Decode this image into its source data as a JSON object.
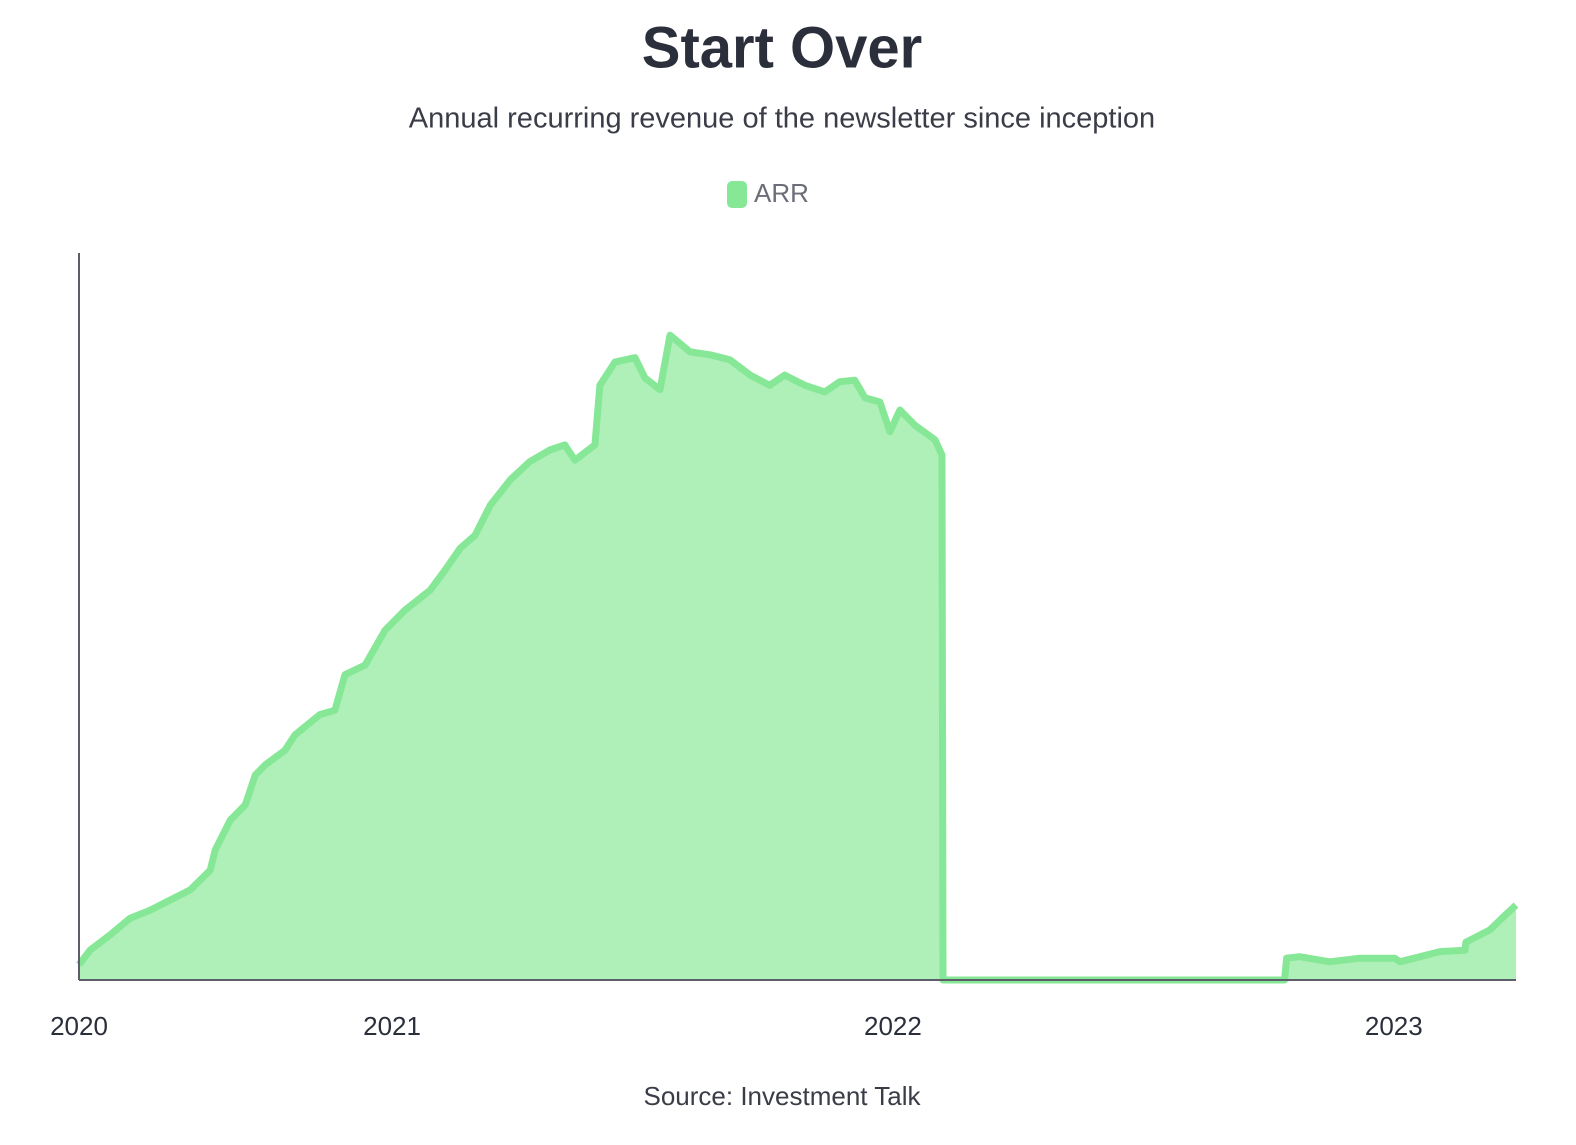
{
  "chart_data": {
    "type": "area",
    "title": "Start Over",
    "subtitle": "Annual recurring revenue of the newsletter since inception",
    "source": "Source: Investment Talk",
    "legend": "top",
    "grid": false,
    "xlim": [
      2020.375,
      2023.244
    ],
    "xticks": [
      {
        "value": 2020.375,
        "label": "2020"
      },
      2021,
      2022,
      2023
    ],
    "ylim": [
      0,
      100
    ],
    "x": [
      2020.375,
      2020.397,
      2020.437,
      2020.477,
      2020.517,
      2020.557,
      2020.597,
      2020.637,
      2020.647,
      2020.677,
      2020.707,
      2020.727,
      2020.747,
      2020.786,
      2020.806,
      2020.856,
      2020.886,
      2020.906,
      2020.946,
      2020.986,
      2021.026,
      2021.076,
      2021.106,
      2021.136,
      2021.166,
      2021.196,
      2021.236,
      2021.275,
      2021.315,
      2021.345,
      2021.365,
      2021.405,
      2021.415,
      2021.445,
      2021.485,
      2021.505,
      2021.535,
      2021.555,
      2021.595,
      2021.635,
      2021.675,
      2021.715,
      2021.754,
      2021.784,
      2021.824,
      2021.864,
      2021.894,
      2021.924,
      2021.944,
      2021.974,
      2021.994,
      2022.014,
      2022.044,
      2022.084,
      2022.098,
      2022.1,
      2022.782,
      2022.786,
      2022.812,
      2022.872,
      2022.932,
      2023.002,
      2023.012,
      2023.092,
      2023.142,
      2023.144,
      2023.192,
      2023.222,
      2023.244
    ],
    "series": [
      {
        "name": "ARR",
        "color": "#86e896",
        "fill": "#aef0b8",
        "values": [
          2.1,
          4.1,
          6.2,
          8.5,
          9.6,
          11.0,
          12.4,
          15.1,
          17.9,
          22.0,
          24.1,
          28.2,
          29.6,
          31.6,
          33.7,
          36.5,
          37.1,
          42.0,
          43.3,
          48.1,
          50.9,
          53.6,
          56.4,
          59.4,
          61.2,
          65.3,
          68.8,
          71.3,
          72.9,
          73.6,
          71.5,
          73.6,
          81.8,
          85.0,
          85.6,
          82.8,
          81.2,
          88.7,
          86.4,
          86.0,
          85.3,
          83.2,
          81.8,
          83.2,
          81.8,
          80.9,
          82.3,
          82.5,
          80.1,
          79.5,
          75.4,
          78.4,
          76.3,
          74.3,
          72.2,
          0,
          0,
          3.0,
          3.2,
          2.5,
          3.0,
          3.0,
          2.5,
          3.9,
          4.1,
          5.2,
          6.9,
          8.9,
          10.3
        ]
      }
    ]
  }
}
